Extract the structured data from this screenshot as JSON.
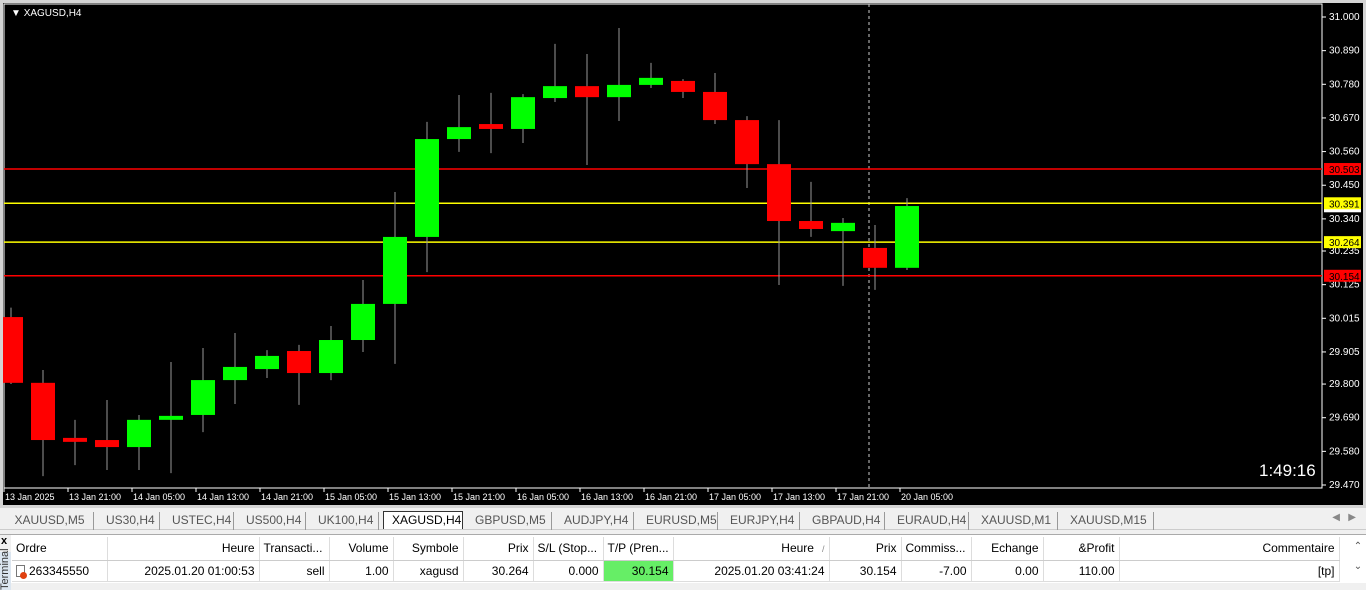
{
  "chart": {
    "symbol_label": "XAGUSD,H4",
    "countdown": "1:49:16"
  },
  "chart_data": {
    "type": "candlestick",
    "title": "XAGUSD,H4",
    "ylim": [
      29.47,
      31.0
    ],
    "y_ticks": [
      "31.000",
      "30.890",
      "30.780",
      "30.670",
      "30.560",
      "30.450",
      "30.340",
      "30.235",
      "30.125",
      "30.015",
      "29.905",
      "29.800",
      "29.690",
      "29.580",
      "29.470"
    ],
    "x_ticks": [
      "13 Jan 2025",
      "13 Jan 21:00",
      "14 Jan 05:00",
      "14 Jan 13:00",
      "14 Jan 21:00",
      "15 Jan 05:00",
      "15 Jan 13:00",
      "15 Jan 21:00",
      "16 Jan 05:00",
      "16 Jan 13:00",
      "16 Jan 21:00",
      "17 Jan 05:00",
      "17 Jan 13:00",
      "17 Jan 21:00",
      "20 Jan 05:00"
    ],
    "candles": [
      [
        30.019,
        30.05,
        29.8,
        29.804
      ],
      [
        29.804,
        29.846,
        29.499,
        29.617
      ],
      [
        29.624,
        29.683,
        29.535,
        29.611
      ],
      [
        29.617,
        29.748,
        29.519,
        29.594
      ],
      [
        29.594,
        29.699,
        29.519,
        29.683
      ],
      [
        29.683,
        29.872,
        29.509,
        29.696
      ],
      [
        29.699,
        29.918,
        29.643,
        29.813
      ],
      [
        29.813,
        29.967,
        29.735,
        29.856
      ],
      [
        29.849,
        29.911,
        29.82,
        29.892
      ],
      [
        29.908,
        29.928,
        29.732,
        29.836
      ],
      [
        29.836,
        29.99,
        29.813,
        29.944
      ],
      [
        29.944,
        30.14,
        29.905,
        30.062
      ],
      [
        30.062,
        30.428,
        29.866,
        30.281
      ],
      [
        30.281,
        30.657,
        30.166,
        30.601
      ],
      [
        30.601,
        30.745,
        30.559,
        30.64
      ],
      [
        30.65,
        30.752,
        30.555,
        30.634
      ],
      [
        30.634,
        30.748,
        30.588,
        30.738
      ],
      [
        30.735,
        30.912,
        30.722,
        30.774
      ],
      [
        30.774,
        30.879,
        30.516,
        30.738
      ],
      [
        30.738,
        30.964,
        30.66,
        30.778
      ],
      [
        30.778,
        30.85,
        30.768,
        30.801
      ],
      [
        30.791,
        30.797,
        30.735,
        30.755
      ],
      [
        30.755,
        30.817,
        30.65,
        30.663
      ],
      [
        30.663,
        30.676,
        30.441,
        30.519
      ],
      [
        30.519,
        30.663,
        30.124,
        30.333
      ],
      [
        30.333,
        30.461,
        30.281,
        30.307
      ],
      [
        30.3,
        30.343,
        30.121,
        30.327
      ],
      [
        30.245,
        30.32,
        30.108,
        30.18
      ],
      [
        30.18,
        30.408,
        30.173,
        30.382
      ]
    ],
    "candle_format": [
      "open",
      "high",
      "low",
      "close"
    ],
    "levels": [
      {
        "price": "30.503",
        "color": "#ff0000"
      },
      {
        "price": "30.391",
        "color": "#ffff00"
      },
      {
        "price": "30.264",
        "color": "#ffff00"
      },
      {
        "price": "30.154",
        "color": "#ff0000"
      }
    ],
    "colors": {
      "bull": "#00ff00",
      "bear": "#ff0000",
      "background": "#000000",
      "axis": "#ffffff"
    },
    "grid": false
  },
  "tabs": [
    "XAUUSD,M5",
    "US30,H4",
    "USTEC,H4",
    "US500,H4",
    "UK100,H4",
    "XAGUSD,H4",
    "GBPUSD,M5",
    "AUDJPY,H4",
    "EURUSD,M5",
    "EURJPY,H4",
    "GBPAUD,H4",
    "EURAUD,H4",
    "XAUUSD,M1",
    "XAUUSD,M15"
  ],
  "active_tab": "XAGUSD,H4",
  "terminal": {
    "side_label": "Terminal",
    "close": "x",
    "columns": [
      "Ordre",
      "Heure",
      "Transacti...",
      "Volume",
      "Symbole",
      "Prix",
      "S/L (Stop...",
      "T/P (Pren...",
      "Heure",
      "Prix",
      "Commiss...",
      "Echange",
      "&Profit",
      "Commentaire"
    ],
    "sort_indicator": "/",
    "row": [
      "263345550",
      "2025.01.20 01:00:53",
      "sell",
      "1.00",
      "xagusd",
      "30.264",
      "0.000",
      "30.154",
      "2025.01.20 03:41:24",
      "30.154",
      "-7.00",
      "0.00",
      "110.00",
      "[tp]"
    ]
  }
}
